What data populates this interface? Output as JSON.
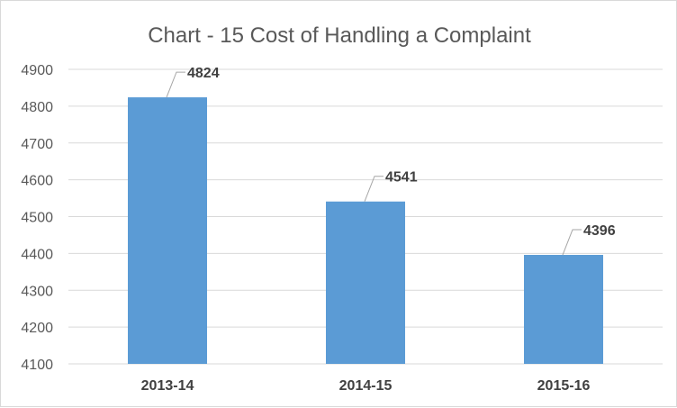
{
  "chart_data": {
    "type": "bar",
    "title": "Chart - 15    Cost of Handling a Complaint",
    "categories": [
      "2013-14",
      "2014-15",
      "2015-16"
    ],
    "values": [
      4824,
      4541,
      4396
    ],
    "ylim": [
      4100,
      4900
    ],
    "yticks": [
      4100,
      4200,
      4300,
      4400,
      4500,
      4600,
      4700,
      4800,
      4900
    ],
    "grid": true,
    "legend": "none",
    "data_labels": true,
    "bar_color": "#5b9bd5"
  }
}
